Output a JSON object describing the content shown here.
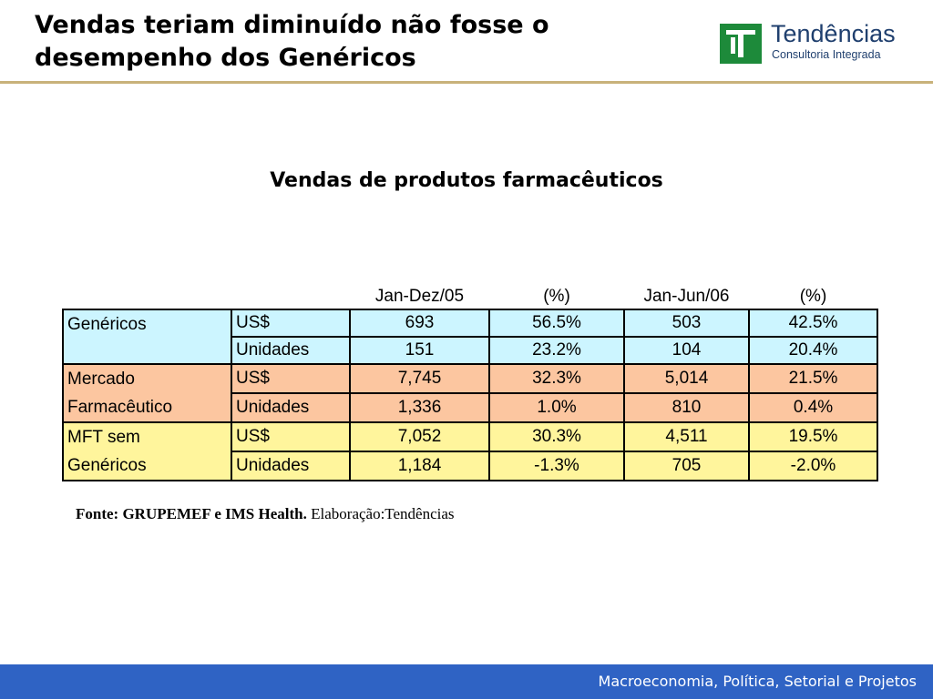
{
  "slide": {
    "title_line1": "Vendas teriam diminuído não fosse o",
    "title_line2": "desempenho dos Genéricos"
  },
  "logo": {
    "name": "Tendências",
    "subtitle": "Consultoria Integrada",
    "mark_icon": "tendencias-t-logo-icon",
    "mark_color": "#1d8a3a"
  },
  "table_title": "Vendas de produtos farmacêuticos",
  "table": {
    "headers": [
      "",
      "",
      "Jan-Dez/05",
      "(%)",
      "Jan-Jun/06",
      "(%)"
    ],
    "groups": [
      {
        "label_line1": "Genéricos",
        "label_line2": "",
        "color": "#ccf5ff",
        "rows": [
          {
            "unit": "US$",
            "v1": "693",
            "p1": "56.5%",
            "v2": "503",
            "p2": "42.5%"
          },
          {
            "unit": "Unidades",
            "v1": "151",
            "p1": "23.2%",
            "v2": "104",
            "p2": "20.4%"
          }
        ]
      },
      {
        "label_line1": "Mercado",
        "label_line2": "Farmacêutico",
        "color": "#fcc6a0",
        "rows": [
          {
            "unit": "US$",
            "v1": "7,745",
            "p1": "32.3%",
            "v2": "5,014",
            "p2": "21.5%"
          },
          {
            "unit": "Unidades",
            "v1": "1,336",
            "p1": "1.0%",
            "v2": "810",
            "p2": "0.4%"
          }
        ]
      },
      {
        "label_line1": "MFT sem",
        "label_line2": "Genéricos",
        "color": "#fff59c",
        "rows": [
          {
            "unit": "US$",
            "v1": "7,052",
            "p1": "30.3%",
            "v2": "4,511",
            "p2": "19.5%"
          },
          {
            "unit": "Unidades",
            "v1": "1,184",
            "p1": "-1.3%",
            "v2": "705",
            "p2": "-2.0%"
          }
        ]
      }
    ]
  },
  "source": {
    "bold": "Fonte: GRUPEMEF e IMS Health.",
    "normal": "Elaboração:Tendências"
  },
  "footer": {
    "text": "Macroeconomia, Política, Setorial e Projetos",
    "color": "#2f63c4"
  }
}
